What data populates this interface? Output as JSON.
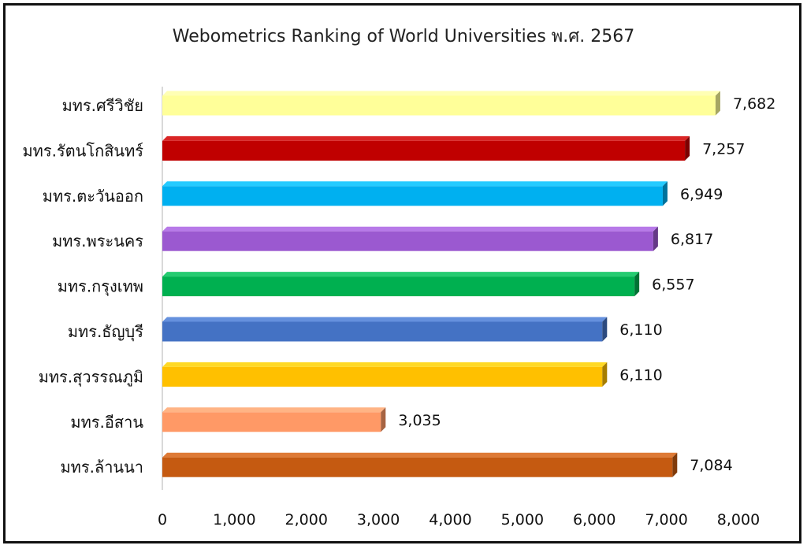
{
  "chart_data": {
    "type": "bar",
    "orientation": "horizontal",
    "title": "Webometrics Ranking  of World Universities พ.ศ. 2567",
    "categories": [
      "มทร.ศรีวิชัย",
      "มทร.รัตนโกสินทร์",
      "มทร.ตะวันออก",
      "มทร.พระนคร",
      "มทร.กรุงเทพ",
      "มทร.ธัญบุรี",
      "มทร.สุวรรณภูมิ",
      "มทร.อีสาน",
      "มทร.ล้านนา"
    ],
    "values": [
      7682,
      7257,
      6949,
      6817,
      6557,
      6110,
      6110,
      3035,
      7084
    ],
    "value_labels": [
      "7,682",
      "7,257",
      "6,949",
      "6,817",
      "6,557",
      "6,110",
      "6,110",
      "3,035",
      "7,084"
    ],
    "colors": [
      "#FFFF99",
      "#C00000",
      "#00B0F0",
      "#9B59D0",
      "#00B050",
      "#4472C4",
      "#FFC000",
      "#FF9966",
      "#C55A11"
    ],
    "xlim": [
      0,
      8000
    ],
    "xticks": [
      0,
      1000,
      2000,
      3000,
      4000,
      5000,
      6000,
      7000,
      8000
    ],
    "xtick_labels": [
      "0",
      "1,000",
      "2,000",
      "3,000",
      "4,000",
      "5,000",
      "6,000",
      "7,000",
      "8,000"
    ],
    "xlabel": "",
    "ylabel": "",
    "grid": false,
    "legend": "none"
  }
}
